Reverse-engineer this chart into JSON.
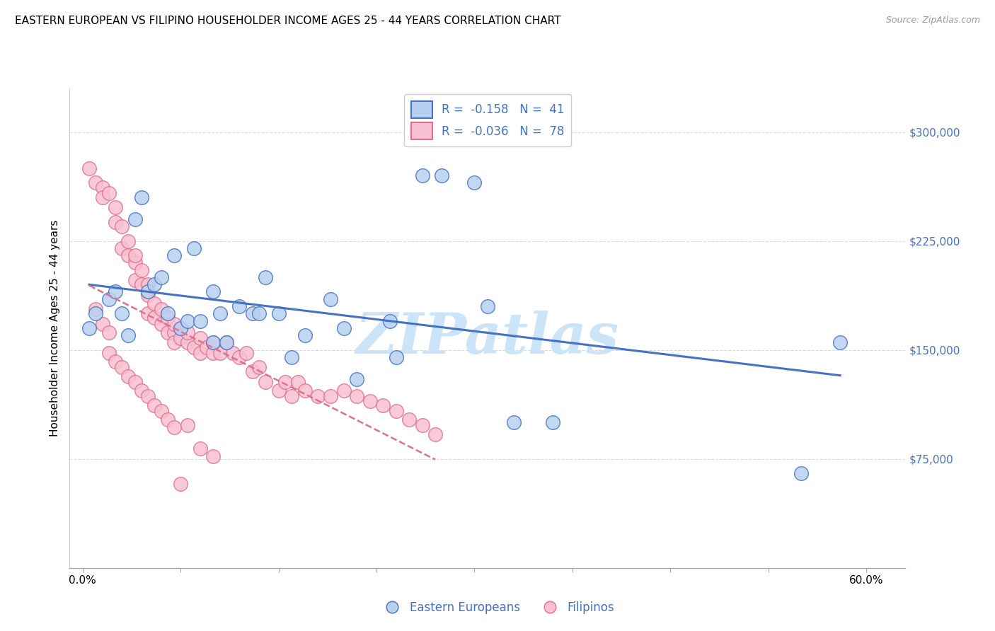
{
  "title": "EASTERN EUROPEAN VS FILIPINO HOUSEHOLDER INCOME AGES 25 - 44 YEARS CORRELATION CHART",
  "source": "Source: ZipAtlas.com",
  "ylabel": "Householder Income Ages 25 - 44 years",
  "xtick_vals": [
    0.0,
    0.075,
    0.15,
    0.225,
    0.3,
    0.375,
    0.45,
    0.525,
    0.6
  ],
  "xtick_labels_show": [
    "0.0%",
    "",
    "",
    "",
    "",
    "",
    "",
    "",
    "60.0%"
  ],
  "ytick_labels": [
    "$75,000",
    "$150,000",
    "$225,000",
    "$300,000"
  ],
  "ytick_vals": [
    75000,
    150000,
    225000,
    300000
  ],
  "ylim": [
    0,
    330000
  ],
  "xlim": [
    -0.01,
    0.63
  ],
  "legend_r1": "-0.158",
  "legend_n1": "41",
  "legend_r2": "-0.036",
  "legend_n2": "78",
  "color_eastern_fill": "#b8d0f0",
  "color_eastern_edge": "#4472c4",
  "color_filipino_fill": "#f8c0d0",
  "color_filipino_edge": "#e07090",
  "color_trend_eastern": "#4472c4",
  "color_trend_filipino": "#e07090",
  "grid_color": "#d0dce8",
  "bg_color": "#ffffff",
  "watermark": "ZIPatlas",
  "eastern_x": [
    0.005,
    0.01,
    0.02,
    0.025,
    0.03,
    0.035,
    0.04,
    0.045,
    0.05,
    0.055,
    0.06,
    0.065,
    0.07,
    0.075,
    0.08,
    0.085,
    0.09,
    0.1,
    0.1,
    0.105,
    0.11,
    0.12,
    0.13,
    0.135,
    0.14,
    0.15,
    0.16,
    0.17,
    0.19,
    0.2,
    0.21,
    0.235,
    0.24,
    0.26,
    0.275,
    0.3,
    0.31,
    0.33,
    0.36,
    0.55,
    0.58
  ],
  "eastern_y": [
    165000,
    175000,
    185000,
    190000,
    175000,
    160000,
    240000,
    255000,
    190000,
    195000,
    200000,
    175000,
    215000,
    165000,
    170000,
    220000,
    170000,
    190000,
    155000,
    175000,
    155000,
    180000,
    175000,
    175000,
    200000,
    175000,
    145000,
    160000,
    185000,
    165000,
    130000,
    170000,
    145000,
    270000,
    270000,
    265000,
    180000,
    100000,
    100000,
    65000,
    155000
  ],
  "filipino_x": [
    0.005,
    0.01,
    0.015,
    0.015,
    0.02,
    0.025,
    0.025,
    0.03,
    0.03,
    0.035,
    0.035,
    0.04,
    0.04,
    0.04,
    0.045,
    0.045,
    0.05,
    0.05,
    0.05,
    0.055,
    0.055,
    0.06,
    0.06,
    0.065,
    0.065,
    0.07,
    0.07,
    0.07,
    0.075,
    0.08,
    0.08,
    0.085,
    0.09,
    0.09,
    0.095,
    0.1,
    0.1,
    0.105,
    0.11,
    0.115,
    0.12,
    0.125,
    0.13,
    0.135,
    0.14,
    0.15,
    0.155,
    0.16,
    0.165,
    0.17,
    0.18,
    0.19,
    0.2,
    0.21,
    0.22,
    0.23,
    0.24,
    0.25,
    0.26,
    0.27,
    0.01,
    0.015,
    0.02,
    0.02,
    0.025,
    0.03,
    0.035,
    0.04,
    0.045,
    0.05,
    0.055,
    0.06,
    0.065,
    0.07,
    0.075,
    0.08,
    0.09,
    0.1
  ],
  "filipino_y": [
    275000,
    265000,
    262000,
    255000,
    258000,
    248000,
    238000,
    235000,
    220000,
    225000,
    215000,
    210000,
    198000,
    215000,
    195000,
    205000,
    188000,
    175000,
    195000,
    182000,
    172000,
    168000,
    178000,
    162000,
    172000,
    162000,
    155000,
    168000,
    158000,
    155000,
    162000,
    152000,
    148000,
    158000,
    152000,
    148000,
    155000,
    148000,
    155000,
    148000,
    145000,
    148000,
    135000,
    138000,
    128000,
    122000,
    128000,
    118000,
    128000,
    122000,
    118000,
    118000,
    122000,
    118000,
    115000,
    112000,
    108000,
    102000,
    98000,
    92000,
    178000,
    168000,
    162000,
    148000,
    142000,
    138000,
    132000,
    128000,
    122000,
    118000,
    112000,
    108000,
    102000,
    97000,
    58000,
    98000,
    82000,
    77000
  ]
}
